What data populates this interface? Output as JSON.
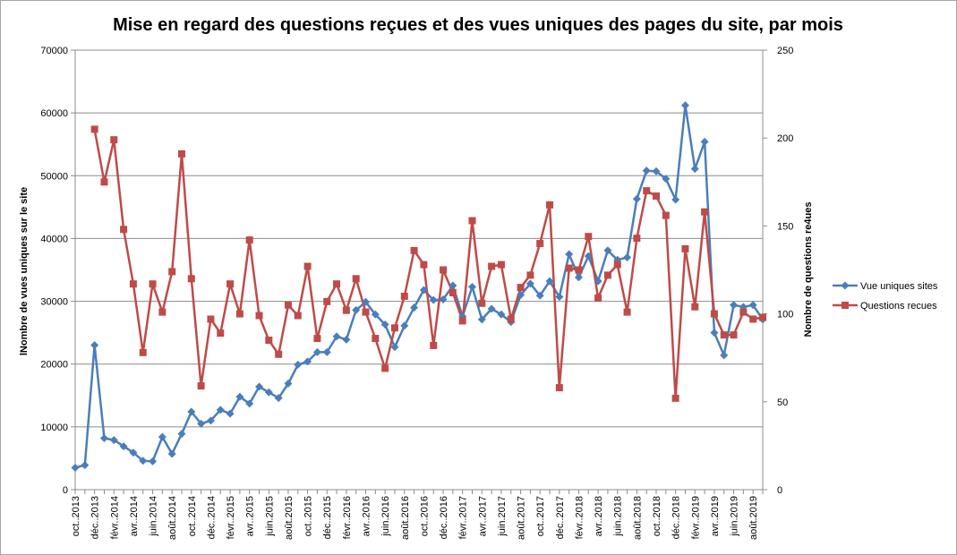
{
  "chart_data": {
    "type": "line",
    "title": "Mise en regard des questions reçues et des vues uniques des pages du site, par mois",
    "ylabel_left": "lNombre de vues uniques sur le site",
    "ylabel_right": "Nombre de questions re4ues",
    "ylim_left": [
      0,
      70000
    ],
    "ylim_right": [
      0,
      250
    ],
    "yticks_left": [
      0,
      10000,
      20000,
      30000,
      40000,
      50000,
      60000,
      70000
    ],
    "yticks_right": [
      0,
      50,
      100,
      150,
      200,
      250
    ],
    "grid": true,
    "legend_position": "right",
    "x": [
      "oct.2013",
      "nov.2013",
      "déc.2013",
      "janv.2014",
      "févr.2014",
      "mars.2014",
      "avr.2014",
      "mai.2014",
      "juin.2014",
      "juil.2014",
      "août.2014",
      "sept.2014",
      "oct.2014",
      "nov.2014",
      "déc.2014",
      "janv.2015",
      "févr.2015",
      "mars.2015",
      "avr.2015",
      "mai.2015",
      "juin.2015",
      "juil.2015",
      "août.2015",
      "sept.2015",
      "oct.2015",
      "nov.2015",
      "déc.2015",
      "janv.2016",
      "févr.2016",
      "mars.2016",
      "avr.2016",
      "mai.2016",
      "juin.2016",
      "juil.2016",
      "août.2016",
      "sept.2016",
      "oct.2016",
      "nov.2016",
      "déc.2016",
      "janv.2017",
      "févr.2017",
      "mars.2017",
      "avr.2017",
      "mai.2017",
      "juin.2017",
      "juil.2017",
      "août.2017",
      "sept.2017",
      "oct.2017",
      "nov.2017",
      "déc.2017",
      "janv.2018",
      "févr.2018",
      "mars.2018",
      "avr.2018",
      "mai.2018",
      "juin.2018",
      "juil.2018",
      "août.2018",
      "sept.2018",
      "oct.2018",
      "nov.2018",
      "déc.2018",
      "janv.2019",
      "févr.2019",
      "mars.2019",
      "avr.2019",
      "mai.2019",
      "juin.2019",
      "juil.2019",
      "août.2019",
      "sept.2019"
    ],
    "x_tick_labels": [
      "oct..2013",
      "déc..2013",
      "févr..2014",
      "avr..2014",
      "juin.2014",
      "août.2014",
      "oct..2014",
      "déc..2014",
      "févr..2015",
      "avr..2015",
      "juin.2015",
      "août.2015",
      "oct..2015",
      "déc..2015",
      "févr..2016",
      "avr..2016",
      "juin.2016",
      "août.2016",
      "oct..2016",
      "déc..2016",
      "févr..2017",
      "avr..2017",
      "juin.2017",
      "août.2017",
      "oct..2017",
      "déc..2017",
      "févr..2018",
      "avr..2018",
      "juin.2018",
      "août.2018",
      "oct..2018",
      "déc..2018",
      "févr..2019",
      "avr..2019",
      "juin.2019",
      "août.2019"
    ],
    "series": [
      {
        "name": "Vue uniques sites",
        "axis": "left",
        "color": "#4a7ebb",
        "marker": "diamond",
        "values": [
          3500,
          3900,
          23000,
          8200,
          7900,
          6900,
          5900,
          4600,
          4500,
          8400,
          5700,
          8900,
          12400,
          10500,
          11000,
          12700,
          12100,
          14800,
          13700,
          16400,
          15500,
          14600,
          16900,
          19900,
          20400,
          21900,
          21900,
          24400,
          23900,
          28600,
          29900,
          27900,
          26300,
          22700,
          26100,
          29000,
          31800,
          30200,
          30300,
          32500,
          27600,
          32300,
          27100,
          28800,
          27900,
          26700,
          31000,
          32800,
          30900,
          33200,
          30700,
          37500,
          33800,
          37200,
          33200,
          38100,
          36600,
          37000,
          46300,
          50800,
          50700,
          49500,
          46200,
          61200,
          51100,
          55400,
          25000,
          21400,
          29400,
          29100,
          29400,
          27100
        ]
      },
      {
        "name": "Questions recues",
        "axis": "right",
        "color": "#be4b48",
        "marker": "square",
        "values": [
          null,
          null,
          205,
          175,
          199,
          148,
          117,
          78,
          117,
          101,
          124,
          191,
          120,
          59,
          97,
          89,
          117,
          100,
          142,
          99,
          85,
          77,
          105,
          99,
          127,
          86,
          107,
          117,
          102,
          120,
          101,
          86,
          69,
          92,
          110,
          136,
          128,
          82,
          125,
          112,
          96,
          153,
          106,
          127,
          128,
          97,
          115,
          122,
          140,
          162,
          58,
          126,
          125,
          144,
          109,
          122,
          128,
          101,
          143,
          170,
          167,
          156,
          52,
          137,
          104,
          158,
          100,
          88,
          88,
          101,
          97,
          98
        ]
      }
    ]
  }
}
